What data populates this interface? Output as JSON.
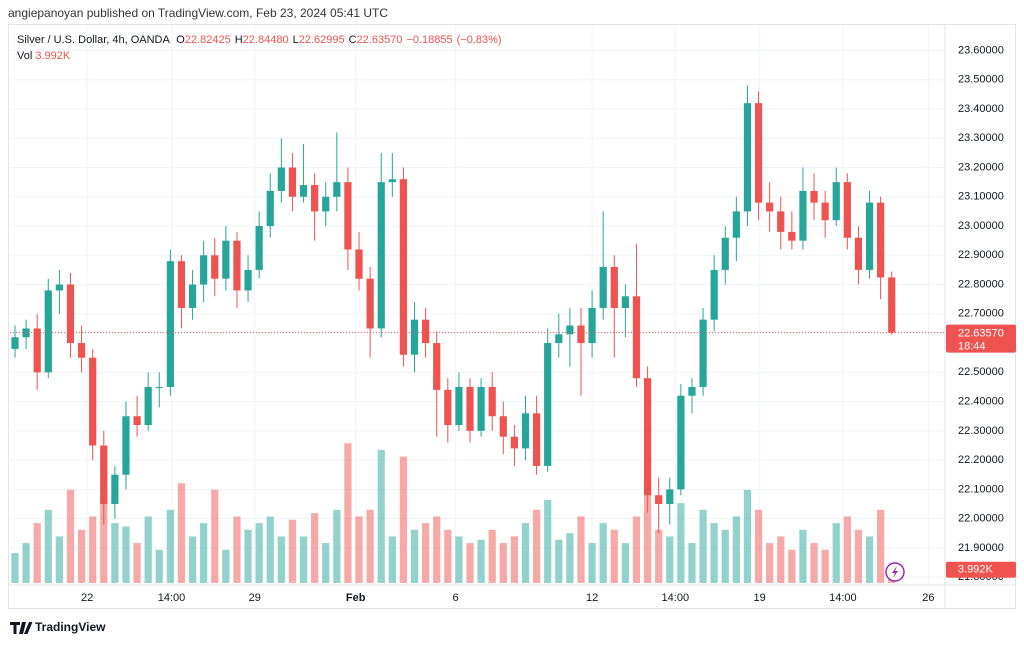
{
  "header": "angiepanoyan published on TradingView.com, Feb 23, 2024 05:41 UTC",
  "footer": "TradingView",
  "chart_data": {
    "type": "candlestick",
    "legend": {
      "symbol": "Silver / U.S. Dollar, 4h, OANDA",
      "fields": [
        {
          "name": "O",
          "value": 22.82425
        },
        {
          "name": "H",
          "value": {
            "value": 22.8448,
            "label": "22.84480"
          }
        },
        {
          "name": "L",
          "value": 22.62995
        },
        {
          "name": "C",
          "value": {
            "value": 22.6357,
            "label": "22.63570"
          }
        }
      ],
      "change": {
        "value": -0.18855,
        "label": "−0.18855"
      },
      "change_pct": {
        "value": -0.83,
        "label": "(−0.83%)"
      },
      "volume_name": "Vol",
      "volume": {
        "value": 3.992,
        "label": "3.992K"
      }
    },
    "last_price": {
      "value": 22.6357,
      "label": "22.63570"
    },
    "countdown": "18:44",
    "up_color": "#26a69a",
    "down_color": "#ef5350",
    "grid": true,
    "xlim": [
      -0.45,
      83.8
    ],
    "xticks": [
      {
        "value": 6.5,
        "label": "22"
      },
      {
        "value": 14.1,
        "label": "14:00"
      },
      {
        "value": 21.6,
        "label": "29"
      },
      {
        "value": 30.7,
        "label": "Feb"
      },
      {
        "value": 39.7,
        "label": "6"
      },
      {
        "value": 52.0,
        "label": "12"
      },
      {
        "value": 59.5,
        "label": "14:00"
      },
      {
        "value": 67.1,
        "label": "19"
      },
      {
        "value": 74.6,
        "label": "14:00"
      },
      {
        "value": 82.3,
        "label": "26"
      }
    ],
    "ylim": [
      21.78,
      23.67
    ],
    "yticks": [
      {
        "value": 21.8,
        "label": "21.80000"
      },
      {
        "value": 21.9,
        "label": "21.90000"
      },
      {
        "value": 22.0,
        "label": "22.00000"
      },
      {
        "value": 22.1,
        "label": "22.10000"
      },
      {
        "value": 22.2,
        "label": "22.20000"
      },
      {
        "value": 22.3,
        "label": "22.30000"
      },
      {
        "value": 22.4,
        "label": "22.40000"
      },
      {
        "value": 22.5,
        "label": "22.50000"
      },
      {
        "value": 22.7,
        "label": "22.70000"
      },
      {
        "value": 22.8,
        "label": "22.80000"
      },
      {
        "value": 22.9,
        "label": "22.90000"
      },
      {
        "value": 23.0,
        "label": "23.00000"
      },
      {
        "value": 23.1,
        "label": "23.10000"
      },
      {
        "value": 23.2,
        "label": "23.20000"
      },
      {
        "value": 23.3,
        "label": "23.30000"
      },
      {
        "value": 23.4,
        "label": "23.40000"
      },
      {
        "value": 23.5,
        "label": "23.50000"
      },
      {
        "value": 23.6,
        "label": "23.60000"
      }
    ],
    "vlim": [
      0,
      55
    ],
    "open": [
      22.58,
      22.62,
      22.65,
      22.5,
      22.78,
      22.8,
      22.6,
      22.55,
      22.25,
      22.05,
      22.15,
      22.35,
      22.32,
      22.45,
      22.45,
      22.88,
      22.72,
      22.8,
      22.9,
      22.82,
      22.95,
      22.78,
      22.85,
      23.0,
      23.12,
      23.2,
      23.1,
      23.14,
      23.05,
      23.1,
      23.15,
      22.92,
      22.82,
      22.65,
      23.15,
      23.16,
      22.56,
      22.68,
      22.6,
      22.44,
      22.32,
      22.45,
      22.3,
      22.45,
      22.35,
      22.28,
      22.24,
      22.36,
      22.18,
      22.6,
      22.63,
      22.66,
      22.6,
      22.72,
      22.86,
      22.72,
      22.76,
      22.48,
      22.08,
      22.05,
      22.1,
      22.42,
      22.45,
      22.68,
      22.85,
      22.96,
      23.05,
      23.42,
      23.08,
      23.05,
      22.98,
      22.95,
      23.12,
      23.08,
      23.02,
      23.15,
      22.96,
      22.85,
      23.08,
      22.82425
    ],
    "high": [
      22.66,
      22.68,
      22.7,
      22.82,
      22.85,
      22.84,
      22.66,
      22.58,
      22.3,
      22.18,
      22.4,
      22.42,
      22.5,
      22.5,
      22.92,
      22.9,
      22.85,
      22.95,
      22.96,
      23.0,
      22.98,
      22.9,
      23.05,
      23.18,
      23.3,
      23.25,
      23.28,
      23.18,
      23.15,
      23.32,
      23.2,
      22.98,
      22.86,
      23.25,
      23.25,
      23.2,
      22.74,
      22.72,
      22.64,
      22.48,
      22.5,
      22.48,
      22.48,
      22.5,
      22.4,
      22.32,
      22.42,
      22.42,
      22.65,
      22.7,
      22.72,
      22.72,
      22.78,
      23.05,
      22.9,
      22.8,
      22.94,
      22.52,
      22.14,
      22.14,
      22.46,
      22.48,
      22.72,
      22.9,
      23.0,
      23.1,
      23.48,
      23.46,
      23.15,
      23.1,
      23.05,
      23.2,
      23.18,
      23.12,
      23.2,
      23.18,
      23.0,
      23.12,
      23.1,
      22.8448
    ],
    "low": [
      22.55,
      22.58,
      22.44,
      22.48,
      22.7,
      22.55,
      22.5,
      22.2,
      21.98,
      22.0,
      22.1,
      22.28,
      22.3,
      22.38,
      22.42,
      22.65,
      22.68,
      22.74,
      22.76,
      22.78,
      22.72,
      22.74,
      22.82,
      22.96,
      23.08,
      23.05,
      23.08,
      22.95,
      23.0,
      23.05,
      22.85,
      22.78,
      22.55,
      22.62,
      23.1,
      22.52,
      22.5,
      22.55,
      22.28,
      22.26,
      22.3,
      22.26,
      22.28,
      22.3,
      22.22,
      22.18,
      22.2,
      22.15,
      22.16,
      22.55,
      22.52,
      22.42,
      22.55,
      22.68,
      22.55,
      22.62,
      22.45,
      22.02,
      21.95,
      21.98,
      22.08,
      22.36,
      22.42,
      22.64,
      22.8,
      22.88,
      23.0,
      23.02,
      22.98,
      22.92,
      22.92,
      22.92,
      23.02,
      22.96,
      23.0,
      22.92,
      22.8,
      22.82,
      22.75,
      22.62995
    ],
    "close": [
      22.62,
      22.65,
      22.5,
      22.78,
      22.8,
      22.6,
      22.55,
      22.25,
      22.05,
      22.15,
      22.35,
      22.32,
      22.45,
      22.45,
      22.88,
      22.72,
      22.8,
      22.9,
      22.82,
      22.95,
      22.78,
      22.85,
      23.0,
      23.12,
      23.2,
      23.1,
      23.14,
      23.05,
      23.1,
      23.15,
      22.92,
      22.82,
      22.65,
      23.15,
      23.16,
      22.56,
      22.68,
      22.6,
      22.44,
      22.32,
      22.45,
      22.3,
      22.45,
      22.35,
      22.28,
      22.24,
      22.36,
      22.18,
      22.6,
      22.63,
      22.66,
      22.6,
      22.72,
      22.86,
      22.72,
      22.76,
      22.48,
      22.08,
      22.05,
      22.1,
      22.42,
      22.45,
      22.68,
      22.85,
      22.96,
      23.05,
      23.42,
      23.08,
      23.05,
      22.98,
      22.95,
      23.12,
      23.08,
      23.02,
      23.15,
      22.96,
      22.85,
      23.08,
      22.82425,
      22.6357
    ],
    "volume": [
      9,
      12,
      18,
      22,
      14,
      28,
      16,
      20,
      26,
      18,
      17,
      12,
      20,
      10,
      22,
      30,
      14,
      18,
      28,
      10,
      20,
      16,
      18,
      20,
      14,
      19,
      14,
      21,
      12,
      22,
      42,
      20,
      22,
      40,
      14,
      38,
      16,
      18,
      20,
      16,
      14,
      12,
      13,
      16,
      12,
      14,
      18,
      22,
      25,
      13,
      15,
      20,
      12,
      18,
      16,
      12,
      20,
      30,
      16,
      14,
      24,
      12,
      22,
      18,
      16,
      20,
      28,
      22,
      12,
      14,
      10,
      16,
      12,
      10,
      18,
      20,
      16,
      14,
      22,
      3.992
    ]
  }
}
